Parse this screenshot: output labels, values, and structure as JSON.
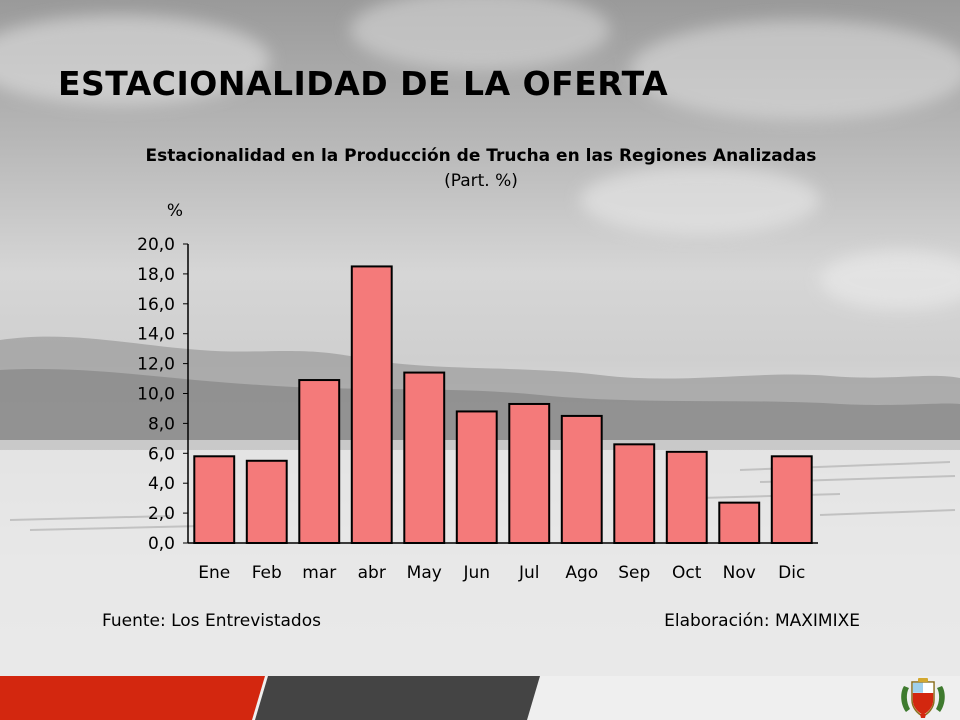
{
  "slide": {
    "title": "ESTACIONALIDAD DE LA OFERTA",
    "source": "Fuente: Los Entrevistados",
    "credit": "Elaboración: MAXIMIXE"
  },
  "colors": {
    "bar_fill": "#f47a7a",
    "bar_stroke": "#000000",
    "footer_red": "#d3270f",
    "footer_dark": "#444444",
    "footer_light": "#efefef"
  },
  "icons": {
    "crest": "peru-coat-of-arms-icon"
  },
  "chart_data": {
    "type": "bar",
    "title": "Estacionalidad en la Producción de Trucha en las Regiones Analizadas",
    "subtitle": "(Part. %)",
    "ylabel": "%",
    "xlabel": "",
    "categories": [
      "Ene",
      "Feb",
      "mar",
      "abr",
      "May",
      "Jun",
      "Jul",
      "Ago",
      "Sep",
      "Oct",
      "Nov",
      "Dic"
    ],
    "values": [
      5.8,
      5.5,
      10.9,
      18.5,
      11.4,
      8.8,
      9.3,
      8.5,
      6.6,
      6.1,
      2.7,
      5.8
    ],
    "ylim": [
      0,
      20
    ],
    "yticks": [
      "0,0",
      "2,0",
      "4,0",
      "6,0",
      "8,0",
      "10,0",
      "12,0",
      "14,0",
      "16,0",
      "18,0",
      "20,0"
    ],
    "grid": false,
    "legend": "none"
  }
}
